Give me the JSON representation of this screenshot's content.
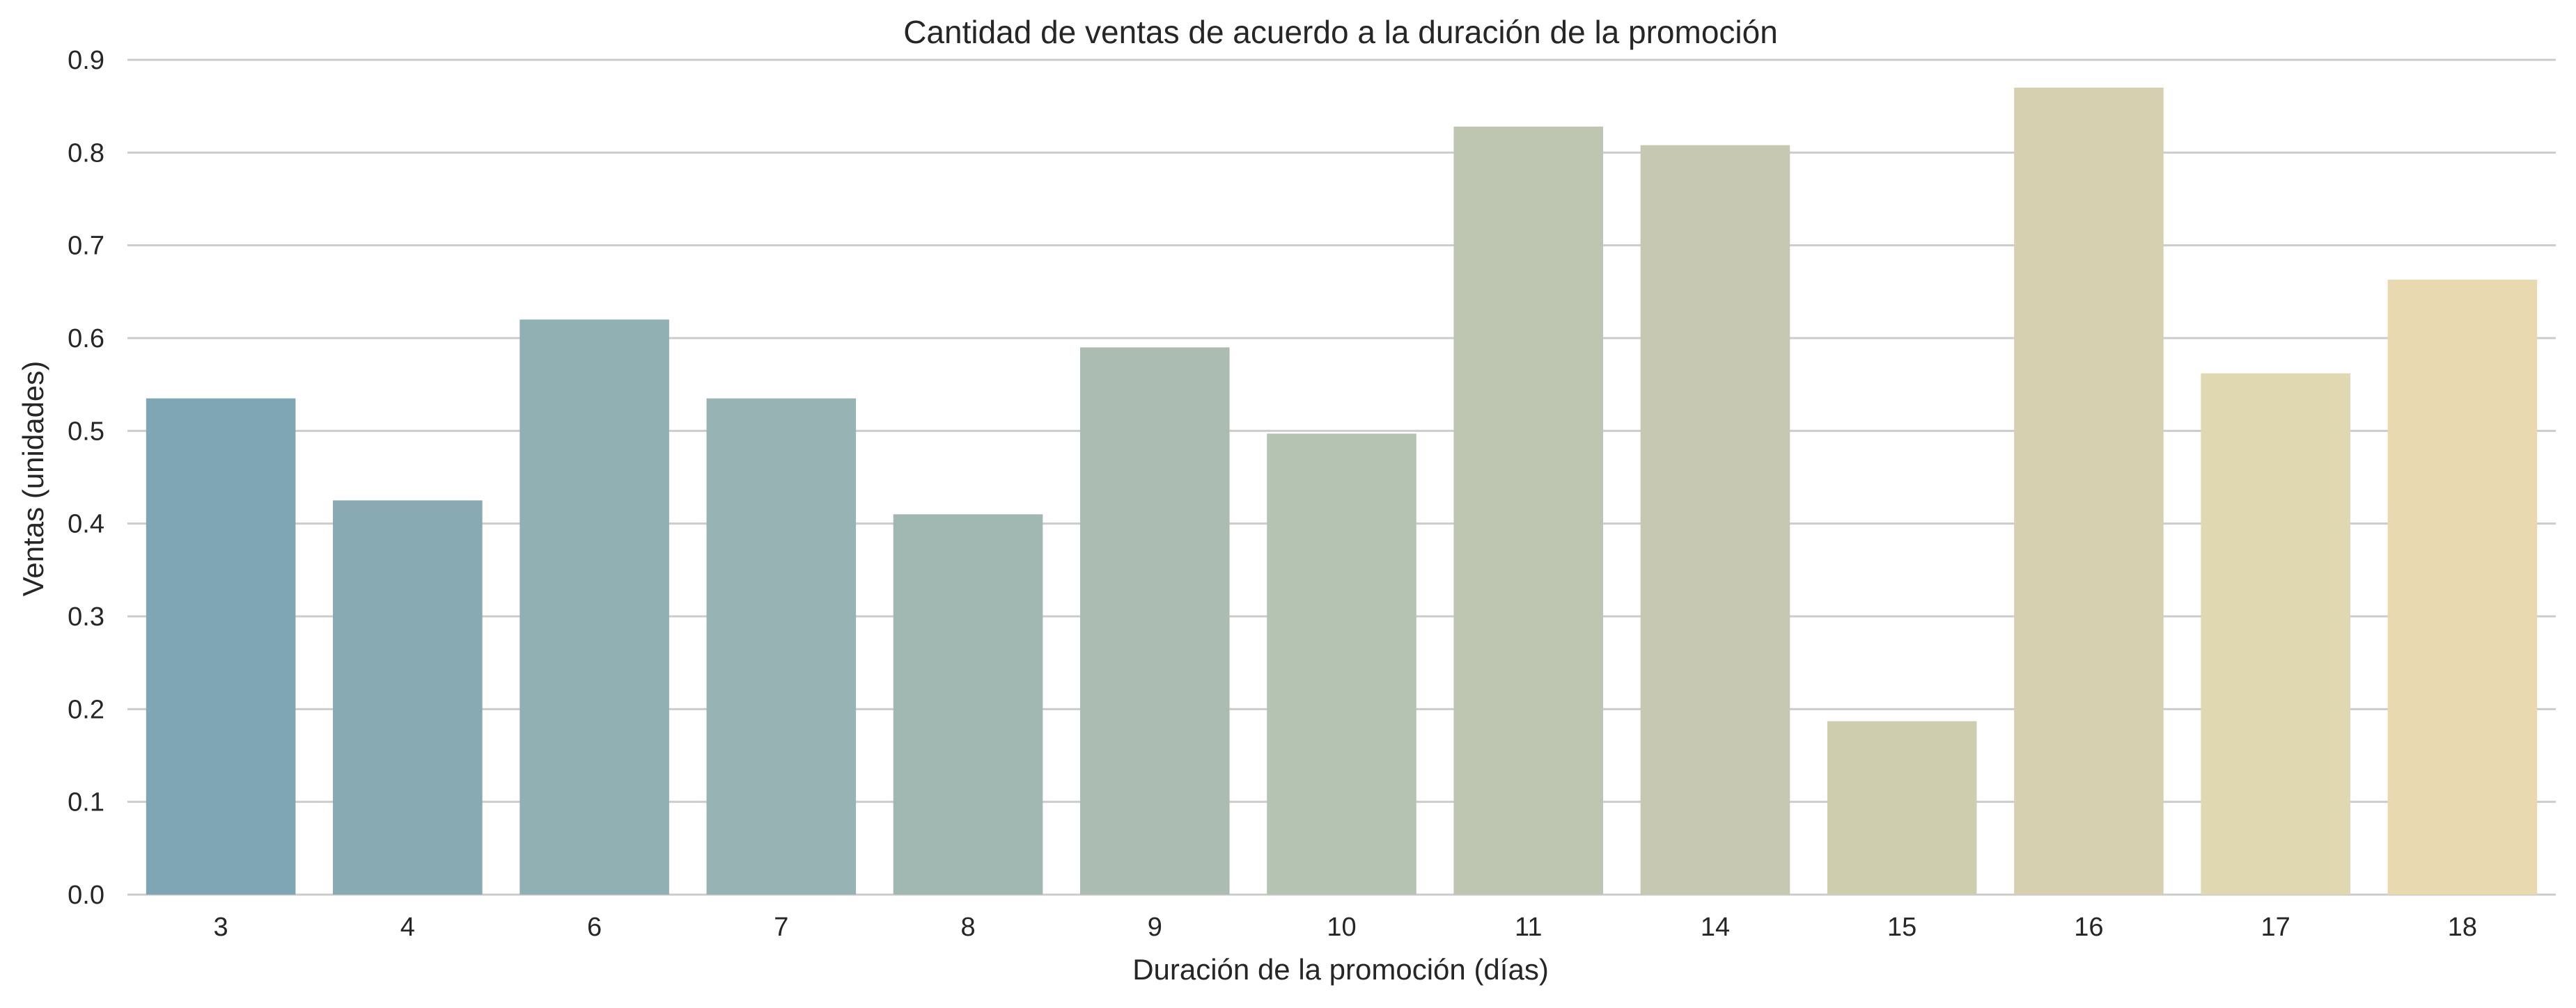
{
  "chart_data": {
    "type": "bar",
    "title": "Cantidad de ventas de acuerdo a la duración de la promoción",
    "xlabel": "Duración de la promoción (días)",
    "ylabel": "Ventas (unidades)",
    "categories": [
      "3",
      "4",
      "6",
      "7",
      "8",
      "9",
      "10",
      "11",
      "14",
      "15",
      "16",
      "17",
      "18"
    ],
    "values": [
      0.535,
      0.425,
      0.62,
      0.535,
      0.41,
      0.59,
      0.497,
      0.828,
      0.808,
      0.187,
      0.87,
      0.562,
      0.663
    ],
    "colors": [
      "#7fa6b5",
      "#87aab3",
      "#90b0b4",
      "#98b3b3",
      "#a0b7b2",
      "#abbdb2",
      "#b5c3b3",
      "#bec6b2",
      "#c6c8b1",
      "#cecdae",
      "#d6d0b0",
      "#e0d8b1",
      "#e8d9b1"
    ],
    "y_ticks": [
      "0.0",
      "0.1",
      "0.2",
      "0.3",
      "0.4",
      "0.5",
      "0.6",
      "0.7",
      "0.8",
      "0.9"
    ],
    "ylim": [
      0,
      0.9
    ],
    "grid": true,
    "legend": "none"
  }
}
